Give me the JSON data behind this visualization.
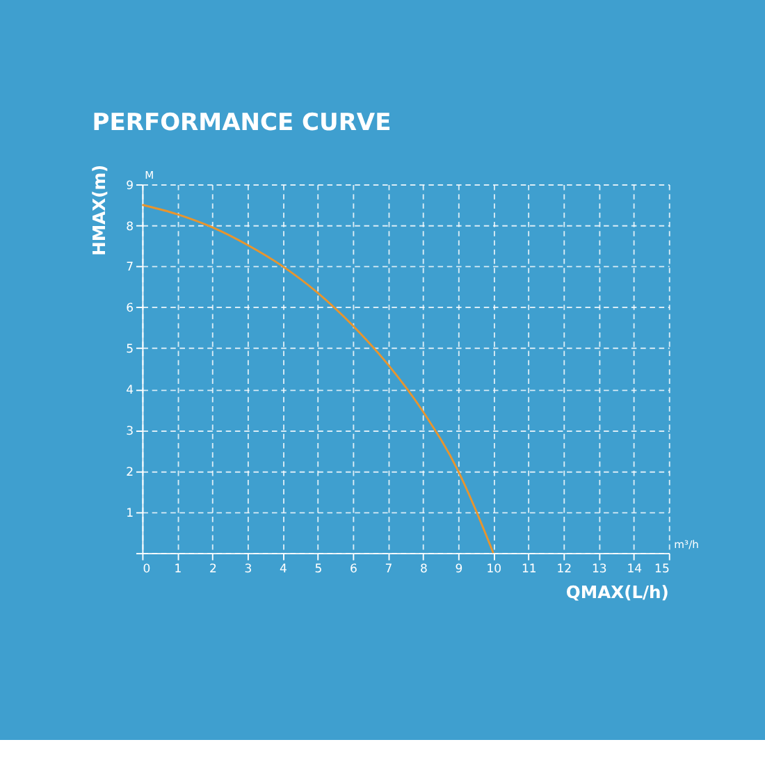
{
  "chart_data": {
    "type": "line",
    "title": "PERFORMANCE CURVE",
    "xlabel": "QMAX(L/h)",
    "ylabel": "HMAX(m)",
    "annotations": [
      "M",
      "m³/h"
    ],
    "series": [
      {
        "color": "#e8952e",
        "x": [
          0,
          1,
          2,
          3,
          4,
          5,
          6,
          7,
          8,
          9,
          9.5,
          10
        ],
        "values": [
          8.5,
          8.27,
          7.95,
          7.52,
          7.0,
          6.35,
          5.55,
          4.6,
          3.45,
          2.0,
          1.05,
          0
        ]
      }
    ],
    "xlim": [
      0,
      15
    ],
    "xticks": [
      0,
      1,
      2,
      3,
      4,
      5,
      6,
      7,
      8,
      9,
      10,
      11,
      12,
      13,
      14,
      15
    ],
    "ylim": [
      0,
      9
    ],
    "yticks": [
      {
        "value": 0,
        "label": null
      },
      1,
      2,
      3,
      4,
      5,
      6,
      7,
      8,
      9
    ],
    "grid": true,
    "marker": "none",
    "line_style": "solid"
  }
}
